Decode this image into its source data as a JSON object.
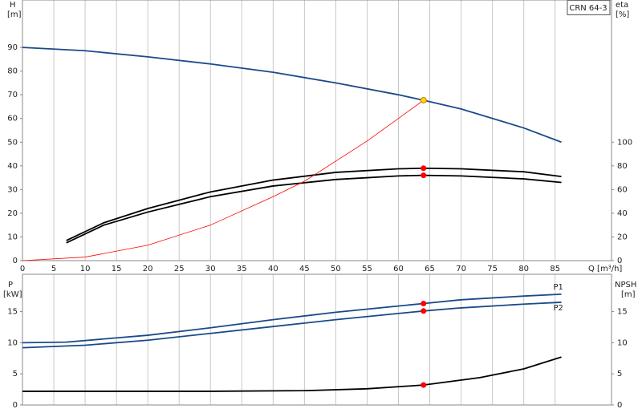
{
  "chart_data": [
    {
      "type": "line",
      "annotation": "CRN 64-3",
      "ylabel": "H",
      "ylabel_unit": "[m]",
      "y2label": "eta",
      "y2label_unit": "[%]",
      "xlabel": "Q [m³/h]",
      "xlim": [
        0,
        94
      ],
      "xticks": [
        0,
        5,
        10,
        15,
        20,
        25,
        30,
        35,
        40,
        45,
        50,
        55,
        60,
        65,
        70,
        75,
        80,
        85
      ],
      "ylim": [
        0,
        110
      ],
      "yticks": [
        0,
        10,
        20,
        30,
        40,
        50,
        60,
        70,
        80,
        90
      ],
      "y2lim": [
        0,
        220
      ],
      "y2ticks": [
        0,
        20,
        40,
        60,
        80,
        100
      ],
      "grid": "x",
      "series": [
        {
          "color": "#1a4a8a",
          "x": [
            0,
            10,
            20,
            30,
            40,
            50,
            60,
            64,
            70,
            80,
            86
          ],
          "values": [
            90,
            88.6,
            86,
            83,
            79.5,
            75,
            70,
            67.7,
            64,
            56,
            50
          ]
        },
        {
          "color": "#000000",
          "axis": "y2",
          "x": [
            7,
            13,
            20,
            30,
            40,
            50,
            60,
            64,
            70,
            80,
            86
          ],
          "values": [
            17,
            32,
            44,
            58,
            68,
            74.5,
            77.5,
            78,
            77.5,
            75,
            71
          ]
        },
        {
          "color": "#000000",
          "axis": "y2",
          "x": [
            7,
            13,
            20,
            30,
            40,
            50,
            60,
            64,
            70,
            80,
            86
          ],
          "values": [
            15,
            30,
            41,
            54,
            63,
            68.5,
            71.5,
            72,
            71.5,
            69,
            66
          ]
        },
        {
          "color": "#ff0000",
          "x": [
            0,
            10,
            20,
            30,
            40,
            45,
            50,
            55,
            60,
            64
          ],
          "values": [
            0,
            1.5,
            6.5,
            15,
            27,
            33.5,
            42,
            50.5,
            60,
            67.7
          ]
        },
        {
          "color": "#ff0000",
          "mode": "markers",
          "axis": "y2",
          "x": [
            64,
            64
          ],
          "values": [
            78,
            72
          ]
        },
        {
          "color": "#ffd700",
          "mode": "markers",
          "x": [
            64
          ],
          "values": [
            67.7
          ]
        }
      ]
    },
    {
      "type": "line",
      "ylabel": "P",
      "ylabel_unit": "[kW]",
      "y2label": "NPSH",
      "y2label_unit": "[m]",
      "xlim": [
        0,
        94
      ],
      "xticks": [
        0,
        5,
        10,
        15,
        20,
        25,
        30,
        35,
        40,
        45,
        50,
        55,
        60,
        65,
        70,
        75,
        80,
        85
      ],
      "ylim": [
        0,
        21
      ],
      "yticks": [
        0,
        5,
        10,
        15
      ],
      "y2lim": [
        0,
        21
      ],
      "y2ticks": [
        0,
        5,
        10,
        15
      ],
      "grid": "x",
      "series": [
        {
          "name": "P1",
          "color": "#1a4a8a",
          "x": [
            0,
            7,
            20,
            30,
            40,
            50,
            60,
            64,
            70,
            80,
            86
          ],
          "values": [
            10,
            10.1,
            11.2,
            12.4,
            13.7,
            14.9,
            15.9,
            16.3,
            16.9,
            17.5,
            17.8
          ]
        },
        {
          "name": "P2",
          "color": "#1a4a8a",
          "x": [
            0,
            10,
            20,
            30,
            40,
            50,
            60,
            64,
            70,
            80,
            86
          ],
          "values": [
            9.2,
            9.6,
            10.4,
            11.5,
            12.6,
            13.7,
            14.7,
            15.1,
            15.6,
            16.2,
            16.5
          ]
        },
        {
          "color": "#000000",
          "axis": "y2",
          "x": [
            0,
            30,
            45,
            55,
            64,
            73,
            80,
            86
          ],
          "values": [
            2.2,
            2.2,
            2.3,
            2.6,
            3.2,
            4.4,
            5.8,
            7.7
          ]
        },
        {
          "color": "#ff0000",
          "mode": "markers",
          "x": [
            64,
            64
          ],
          "values": [
            16.3,
            15.1
          ]
        },
        {
          "color": "#ff0000",
          "mode": "markers",
          "axis": "y2",
          "x": [
            64
          ],
          "values": [
            3.2
          ]
        }
      ]
    }
  ]
}
